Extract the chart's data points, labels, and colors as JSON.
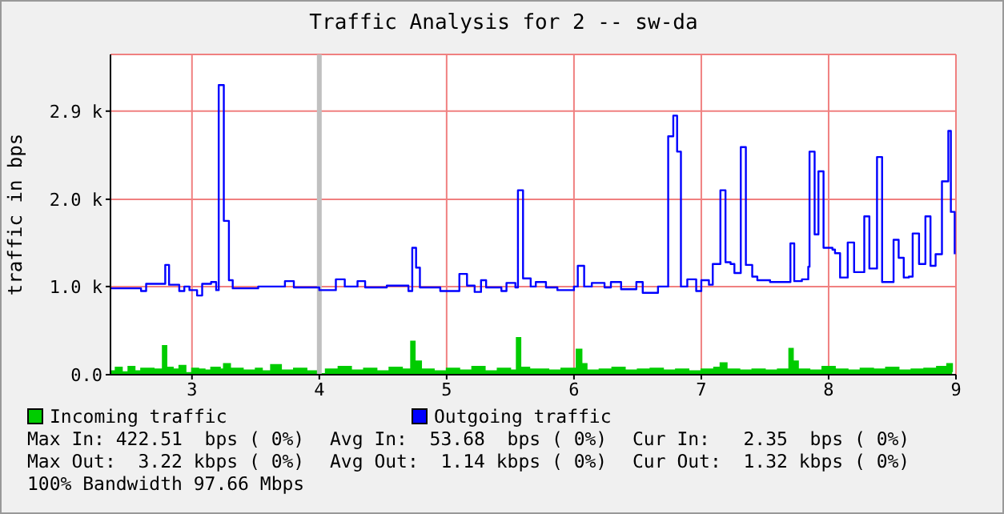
{
  "chart_data": {
    "type": "step",
    "title": "Traffic Analysis for 2 -- sw-da",
    "ylabel": "traffic in bps",
    "xlim": [
      2.36,
      9
    ],
    "xticks": [
      3,
      4,
      5,
      6,
      7,
      8,
      9
    ],
    "ylim": [
      0,
      3.56
    ],
    "yticks": [
      {
        "value": 0,
        "label": "0.0"
      },
      {
        "value": 0.98,
        "label": "1.0 k"
      },
      {
        "value": 1.95,
        "label": "2.0 k"
      },
      {
        "value": 2.93,
        "label": "2.9 k"
      }
    ],
    "grid": true,
    "legend": "bottom",
    "ref_lines": [
      {
        "axis": "x",
        "value": 4,
        "color": "#c0c0c0"
      }
    ],
    "series": [
      {
        "name": "Incoming traffic",
        "type": "area",
        "color": "#00cc00",
        "x": [
          2.36,
          2.4,
          2.45,
          2.5,
          2.55,
          2.6,
          2.7,
          2.77,
          2.8,
          2.85,
          2.9,
          2.95,
          3.0,
          3.05,
          3.1,
          3.15,
          3.22,
          3.25,
          3.3,
          3.4,
          3.5,
          3.55,
          3.62,
          3.7,
          3.8,
          3.9,
          4.0,
          4.05,
          4.15,
          4.25,
          4.35,
          4.45,
          4.55,
          4.65,
          4.72,
          4.75,
          4.8,
          4.9,
          5.0,
          5.1,
          5.2,
          5.3,
          5.4,
          5.5,
          5.55,
          5.58,
          5.65,
          5.8,
          5.9,
          6.02,
          6.06,
          6.1,
          6.2,
          6.3,
          6.4,
          6.5,
          6.6,
          6.7,
          6.8,
          6.9,
          7.0,
          7.1,
          7.15,
          7.2,
          7.3,
          7.4,
          7.5,
          7.6,
          7.69,
          7.72,
          7.76,
          7.85,
          7.95,
          8.05,
          8.15,
          8.25,
          8.35,
          8.45,
          8.55,
          8.65,
          8.75,
          8.85,
          8.93,
          8.97
        ],
        "values": [
          0.04,
          0.08,
          0.03,
          0.09,
          0.04,
          0.07,
          0.06,
          0.32,
          0.08,
          0.06,
          0.1,
          0.02,
          0.07,
          0.06,
          0.05,
          0.08,
          0.06,
          0.12,
          0.07,
          0.05,
          0.07,
          0.04,
          0.11,
          0.05,
          0.07,
          0.04,
          0.01,
          0.06,
          0.09,
          0.05,
          0.07,
          0.04,
          0.08,
          0.06,
          0.37,
          0.15,
          0.06,
          0.04,
          0.07,
          0.05,
          0.09,
          0.04,
          0.07,
          0.05,
          0.41,
          0.08,
          0.06,
          0.05,
          0.07,
          0.28,
          0.12,
          0.05,
          0.06,
          0.08,
          0.05,
          0.06,
          0.07,
          0.05,
          0.06,
          0.04,
          0.06,
          0.08,
          0.13,
          0.06,
          0.05,
          0.06,
          0.05,
          0.06,
          0.29,
          0.15,
          0.06,
          0.05,
          0.09,
          0.06,
          0.05,
          0.07,
          0.06,
          0.08,
          0.05,
          0.06,
          0.07,
          0.09,
          0.12,
          0.03
        ]
      },
      {
        "name": "Outgoing traffic",
        "color": "#0000ff",
        "x": [
          2.36,
          2.6,
          2.64,
          2.77,
          2.79,
          2.82,
          2.9,
          2.94,
          2.98,
          3.04,
          3.08,
          3.15,
          3.19,
          3.21,
          3.25,
          3.29,
          3.32,
          3.52,
          3.73,
          3.8,
          4.0,
          4.13,
          4.2,
          4.3,
          4.36,
          4.53,
          4.7,
          4.73,
          4.76,
          4.79,
          4.95,
          5.1,
          5.16,
          5.22,
          5.27,
          5.31,
          5.43,
          5.47,
          5.54,
          5.56,
          5.6,
          5.66,
          5.7,
          5.78,
          5.87,
          6.0,
          6.03,
          6.08,
          6.14,
          6.24,
          6.29,
          6.37,
          6.49,
          6.54,
          6.66,
          6.74,
          6.78,
          6.81,
          6.84,
          6.89,
          6.96,
          7.0,
          7.06,
          7.09,
          7.15,
          7.19,
          7.23,
          7.26,
          7.31,
          7.35,
          7.4,
          7.44,
          7.54,
          7.63,
          7.7,
          7.73,
          7.79,
          7.84,
          7.85,
          7.89,
          7.92,
          7.96,
          8.03,
          8.05,
          8.09,
          8.15,
          8.2,
          8.28,
          8.32,
          8.38,
          8.42,
          8.51,
          8.55,
          8.59,
          8.63,
          8.66,
          8.71,
          8.76,
          8.8,
          8.84,
          8.89,
          8.94,
          8.96,
          8.99
        ],
        "values": [
          0.96,
          0.93,
          1.01,
          1.01,
          1.22,
          1.0,
          0.93,
          0.98,
          0.94,
          0.88,
          1.01,
          1.03,
          0.94,
          3.22,
          1.71,
          1.05,
          0.96,
          0.98,
          1.04,
          0.97,
          0.94,
          1.06,
          0.98,
          1.04,
          0.97,
          0.99,
          0.93,
          1.41,
          1.19,
          0.97,
          0.93,
          1.12,
          0.99,
          0.92,
          1.05,
          0.97,
          0.93,
          1.02,
          0.97,
          2.05,
          1.07,
          0.98,
          1.03,
          0.97,
          0.94,
          0.98,
          1.21,
          0.98,
          1.02,
          0.97,
          1.03,
          0.95,
          1.03,
          0.91,
          0.98,
          2.65,
          2.88,
          2.48,
          0.98,
          1.06,
          0.93,
          1.05,
          1.0,
          1.23,
          2.05,
          1.25,
          1.23,
          1.13,
          2.53,
          1.22,
          1.09,
          1.05,
          1.03,
          1.03,
          1.46,
          1.04,
          1.06,
          1.2,
          2.48,
          1.56,
          2.26,
          1.41,
          1.39,
          1.35,
          1.08,
          1.47,
          1.14,
          1.76,
          1.18,
          2.42,
          1.03,
          1.5,
          1.3,
          1.08,
          1.09,
          1.57,
          1.23,
          1.76,
          1.21,
          1.34,
          2.15,
          2.71,
          1.81,
          1.34
        ]
      }
    ],
    "annotations": [
      "Max In: 422.51  bps ( 0%)",
      "Avg In:  53.68  bps ( 0%)",
      "Cur In:   2.35  bps ( 0%)",
      "Max Out:  3.22 kbps ( 0%)",
      "Avg Out:  1.14 kbps ( 0%)",
      "Cur Out:  1.32 kbps ( 0%)",
      "100% Bandwidth 97.66 Mbps"
    ]
  }
}
